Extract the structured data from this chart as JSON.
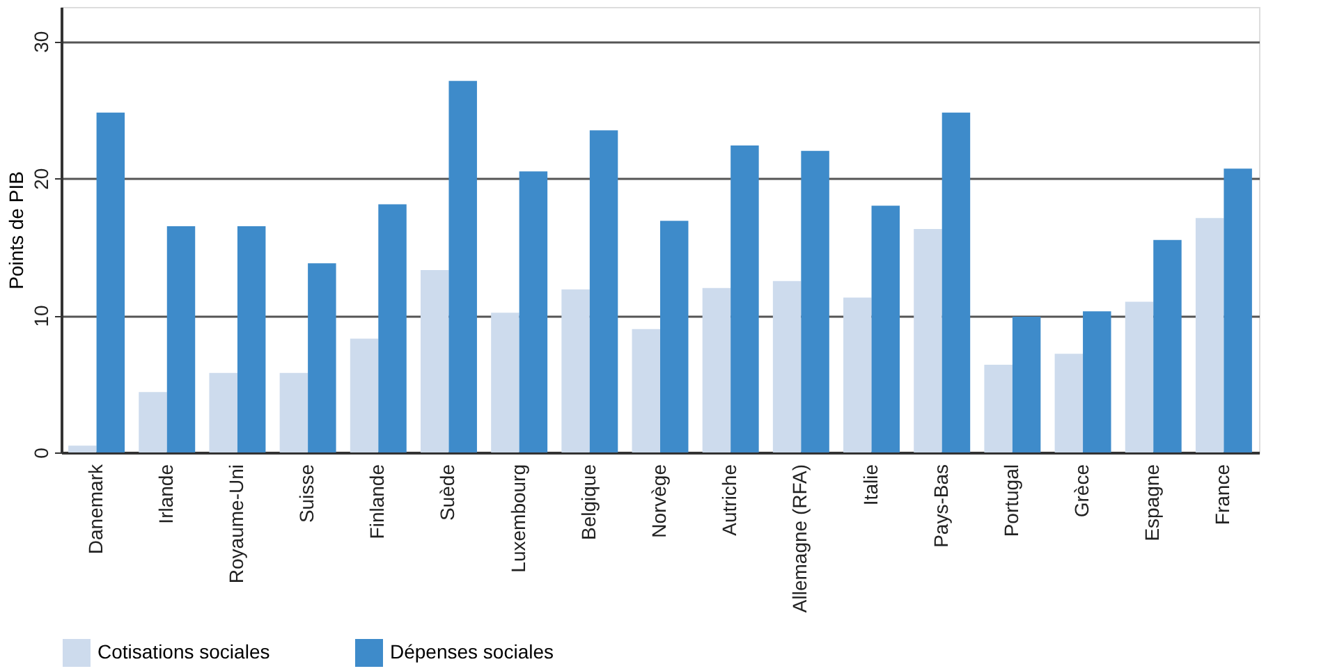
{
  "chart_data": {
    "type": "bar",
    "ylabel": "Points de PIB",
    "categories": [
      "Danemark",
      "Irlande",
      "Royaume-Uni",
      "Suisse",
      "Finlande",
      "Suède",
      "Luxembourg",
      "Belgique",
      "Norvège",
      "Autriche",
      "Allemagne (RFA)",
      "Italie",
      "Pays-Bas",
      "Portugal",
      "Grèce",
      "Espagne",
      "France"
    ],
    "series": [
      {
        "name": "Cotisations sociales",
        "color": "#cddbed",
        "values": [
          0.5,
          4.4,
          5.8,
          5.8,
          8.3,
          13.3,
          10.2,
          11.9,
          9.0,
          12.0,
          12.5,
          11.3,
          16.3,
          6.4,
          7.2,
          11.0,
          17.1
        ]
      },
      {
        "name": "Dépenses sociales",
        "color": "#3e8bca",
        "values": [
          24.8,
          16.5,
          16.5,
          13.8,
          18.1,
          27.1,
          20.5,
          23.5,
          16.9,
          22.4,
          22.0,
          18.0,
          24.8,
          9.9,
          10.3,
          15.5,
          20.7
        ]
      }
    ],
    "ylim": [
      0,
      32.5
    ],
    "yticks": [
      0,
      10,
      20,
      30
    ],
    "grid": "y",
    "legend": "bottom left"
  }
}
